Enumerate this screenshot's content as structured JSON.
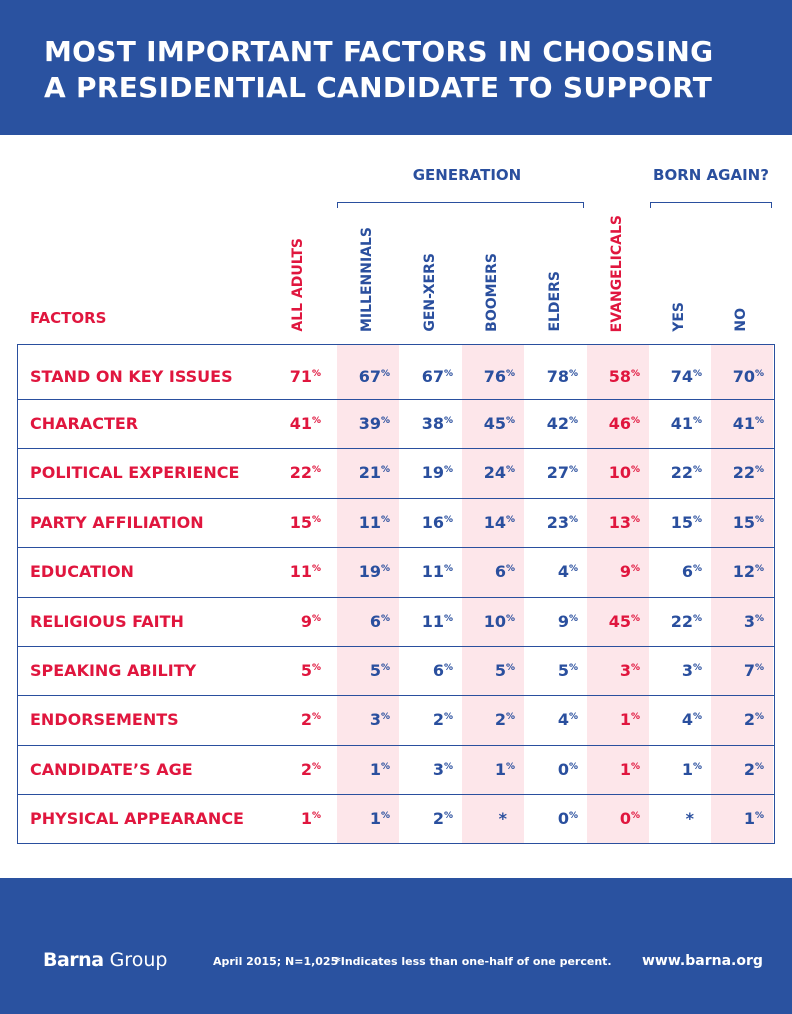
{
  "title_line1": "MOST IMPORTANT FACTORS IN CHOOSING",
  "title_line2": "A PRESIDENTIAL CANDIDATE TO SUPPORT",
  "colors": {
    "blue": "#2a52a0",
    "red": "#e0163e",
    "pink": "#fde6ea"
  },
  "chart_data": {
    "type": "table",
    "group_labels": {
      "generation": "GENERATION",
      "born_again": "BORN AGAIN?"
    },
    "row_header": "FACTORS",
    "columns": [
      "ALL ADULTS",
      "MILLENNIALS",
      "GEN-XERS",
      "BOOMERS",
      "ELDERS",
      "EVANGELICALS",
      "YES",
      "NO"
    ],
    "rows": [
      {
        "factor": "STAND ON KEY ISSUES",
        "values": [
          "71",
          "67",
          "67",
          "76",
          "78",
          "58",
          "74",
          "70"
        ]
      },
      {
        "factor": "CHARACTER",
        "values": [
          "41",
          "39",
          "38",
          "45",
          "42",
          "46",
          "41",
          "41"
        ]
      },
      {
        "factor": "POLITICAL EXPERIENCE",
        "values": [
          "22",
          "21",
          "19",
          "24",
          "27",
          "10",
          "22",
          "22"
        ]
      },
      {
        "factor": "PARTY AFFILIATION",
        "values": [
          "15",
          "11",
          "16",
          "14",
          "23",
          "13",
          "15",
          "15"
        ]
      },
      {
        "factor": "EDUCATION",
        "values": [
          "11",
          "19",
          "11",
          "6",
          "4",
          "9",
          "6",
          "12"
        ]
      },
      {
        "factor": "RELIGIOUS FAITH",
        "values": [
          "9",
          "6",
          "11",
          "10",
          "9",
          "45",
          "22",
          "3"
        ]
      },
      {
        "factor": "SPEAKING ABILITY",
        "values": [
          "5",
          "5",
          "6",
          "5",
          "5",
          "3",
          "3",
          "7"
        ]
      },
      {
        "factor": "ENDORSEMENTS",
        "values": [
          "2",
          "3",
          "2",
          "2",
          "4",
          "1",
          "4",
          "2"
        ]
      },
      {
        "factor": "CANDIDATE’S AGE",
        "values": [
          "2",
          "1",
          "3",
          "1",
          "0",
          "1",
          "1",
          "2"
        ]
      },
      {
        "factor": "PHYSICAL APPEARANCE",
        "values": [
          "1",
          "1",
          "2",
          "*",
          "0",
          "0",
          "*",
          "1"
        ]
      }
    ],
    "unit": "%"
  },
  "footer": {
    "logo": "Barna Group",
    "source": "April 2015; N=1,025",
    "note": "*Indicates less than one-half of one percent.",
    "url": "www.barna.org"
  }
}
